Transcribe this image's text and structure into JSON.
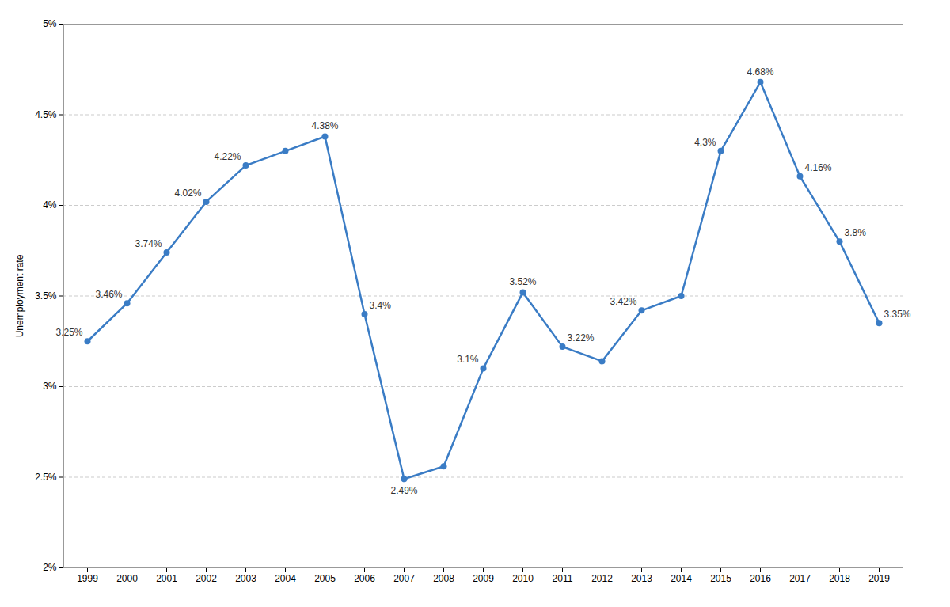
{
  "chart_data": {
    "type": "line",
    "x": [
      1999,
      2000,
      2001,
      2002,
      2003,
      2004,
      2005,
      2006,
      2007,
      2008,
      2009,
      2010,
      2011,
      2012,
      2013,
      2014,
      2015,
      2016,
      2017,
      2018,
      2019
    ],
    "values": [
      3.25,
      3.46,
      3.74,
      4.02,
      4.22,
      4.3,
      4.38,
      3.4,
      2.49,
      2.56,
      3.1,
      3.52,
      3.22,
      3.14,
      3.42,
      3.5,
      4.3,
      4.68,
      4.16,
      3.8,
      3.35
    ],
    "value_labels": [
      "3.25%",
      "3.46%",
      "3.74%",
      "4.02%",
      "4.22%",
      null,
      "4.38%",
      "3.4%",
      "2.49%",
      null,
      "3.1%",
      "3.52%",
      "3.22%",
      null,
      "3.42%",
      null,
      "4.3%",
      "4.68%",
      "4.16%",
      "3.8%",
      "3.35%"
    ],
    "data_labels": true,
    "color": "#3a7cc5",
    "marker": "circle",
    "ylabel": "Unemployment rate",
    "xlim": [
      1998.4,
      2019.6
    ],
    "xticks": [
      1999,
      2000,
      2001,
      2002,
      2003,
      2004,
      2005,
      2006,
      2007,
      2008,
      2009,
      2010,
      2011,
      2012,
      2013,
      2014,
      2015,
      2016,
      2017,
      2018,
      2019
    ],
    "ylim": [
      2.0,
      5.0
    ],
    "yticks": [
      {
        "value": 2.0,
        "label": "2%"
      },
      {
        "value": 2.5,
        "label": "2.5%"
      },
      {
        "value": 3.0,
        "label": "3%"
      },
      {
        "value": 3.5,
        "label": "3.5%"
      },
      {
        "value": 4.0,
        "label": "4%"
      },
      {
        "value": 4.5,
        "label": "4.5%"
      },
      {
        "value": 5.0,
        "label": "5%"
      }
    ],
    "grid": true
  }
}
